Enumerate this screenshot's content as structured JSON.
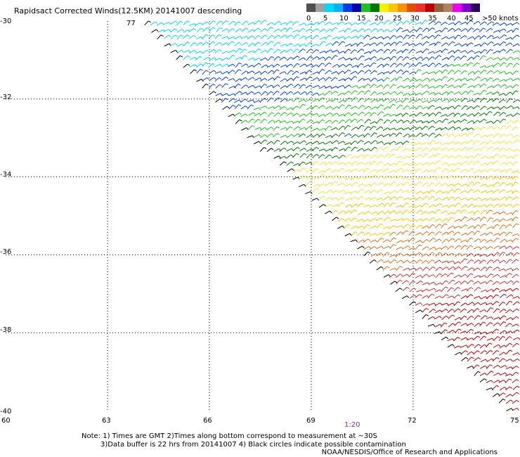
{
  "title": "Rapidsact Corrected Winds(12.5KM) 20141007 descending",
  "legend": {
    "colors": [
      "#505050",
      "#a0a0a0",
      "#00d8f8",
      "#00b4f0",
      "#0040e0",
      "#0000b0",
      "#20c020",
      "#007800",
      "#f8f000",
      "#f8c800",
      "#f89000",
      "#e05000",
      "#f03030",
      "#c00000",
      "#906040",
      "#b08060",
      "#f000f0",
      "#8000d0",
      "#300060"
    ],
    "labels": [
      "0",
      "5",
      "10",
      "15",
      "20",
      "25",
      "30",
      "35",
      "40",
      "45",
      ">50 knots"
    ]
  },
  "axes": {
    "lat_labels": [
      "-30",
      "-32",
      "-34",
      "-36",
      "-38",
      "-40"
    ],
    "lon_labels": [
      "60",
      "63",
      "66",
      "69",
      "72",
      "75"
    ]
  },
  "chart_data": {
    "type": "map",
    "swath_region": "wind barbs over southern Indian Ocean",
    "lat_range": [
      -40,
      -30
    ],
    "lon_range": [
      60,
      75
    ],
    "speed_bands_knots": [
      0,
      5,
      10,
      15,
      20,
      25,
      30,
      35,
      40,
      45,
      50
    ]
  },
  "time_label": "1:20",
  "annotation_top": "77",
  "notes": [
    "Note: 1) Times are GMT 2)Times along bottom correspond to measurement at ~30S",
    "3)Data buffer is 22 hrs from 20141007 4) Black circles indicate possible contamination"
  ],
  "credit": "NOAA/NESDIS/Office of Research and Applications"
}
